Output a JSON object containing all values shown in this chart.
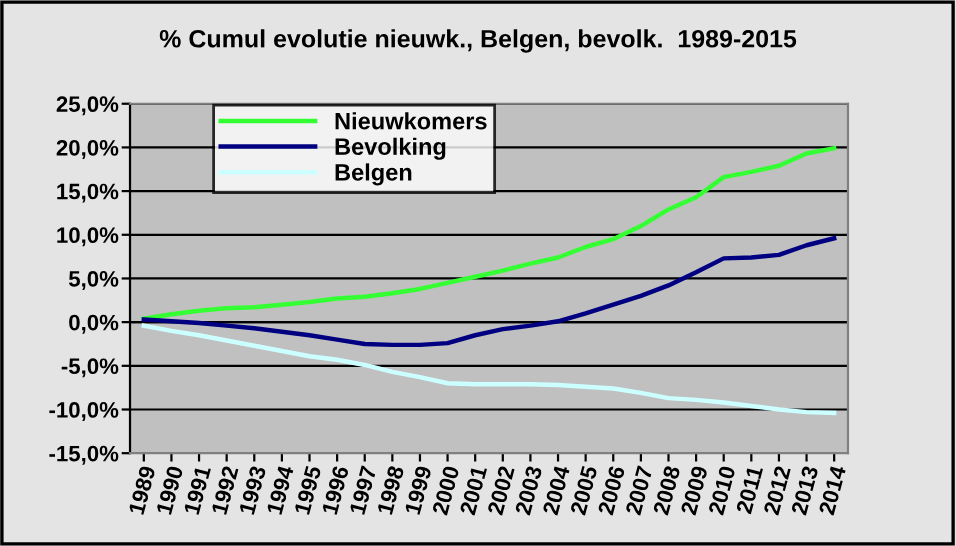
{
  "chart_data": {
    "type": "line",
    "title": "% Cumul evolutie nieuwk., Belgen, bevolk.  1989-2015",
    "categories": [
      "1989",
      "1990",
      "1991",
      "1992",
      "1993",
      "1994",
      "1995",
      "1996",
      "1997",
      "1998",
      "1999",
      "2000",
      "2001",
      "2002",
      "2003",
      "2004",
      "2005",
      "2006",
      "2007",
      "2008",
      "2009",
      "2010",
      "2011",
      "2012",
      "2013",
      "2014"
    ],
    "series": [
      {
        "name": "Nieuwkomers",
        "color": "#33ff33",
        "values": [
          0.4,
          0.9,
          1.3,
          1.6,
          1.7,
          2.0,
          2.3,
          2.7,
          2.9,
          3.3,
          3.8,
          4.5,
          5.2,
          5.9,
          6.7,
          7.4,
          8.6,
          9.5,
          11.0,
          12.9,
          14.3,
          16.6,
          17.2,
          17.9,
          19.3,
          19.9
        ]
      },
      {
        "name": "Bevolking",
        "color": "#000080",
        "values": [
          0.3,
          0.1,
          -0.1,
          -0.4,
          -0.7,
          -1.1,
          -1.5,
          -2.0,
          -2.5,
          -2.6,
          -2.6,
          -2.4,
          -1.5,
          -0.8,
          -0.4,
          0.1,
          1.0,
          2.0,
          3.0,
          4.2,
          5.7,
          7.3,
          7.4,
          7.7,
          8.8,
          9.6
        ]
      },
      {
        "name": "Belgen",
        "color": "#ccffff",
        "values": [
          -0.4,
          -1.0,
          -1.5,
          -2.1,
          -2.7,
          -3.3,
          -3.9,
          -4.3,
          -4.9,
          -5.7,
          -6.3,
          -7.0,
          -7.1,
          -7.1,
          -7.1,
          -7.2,
          -7.4,
          -7.6,
          -8.1,
          -8.7,
          -8.9,
          -9.2,
          -9.6,
          -10.0,
          -10.3,
          -10.4
        ]
      }
    ],
    "ylim": [
      -15,
      25
    ],
    "yticks": [
      {
        "value": -15,
        "label": "-15,0%"
      },
      {
        "value": -10,
        "label": "-10,0%"
      },
      {
        "value": -5,
        "label": "-5,0%"
      },
      {
        "value": 0,
        "label": "0,0%"
      },
      {
        "value": 5,
        "label": "5,0%"
      },
      {
        "value": 10,
        "label": "10,0%"
      },
      {
        "value": 15,
        "label": "15,0%"
      },
      {
        "value": 20,
        "label": "20,0%"
      },
      {
        "value": 25,
        "label": "25,0%"
      }
    ],
    "grid": "y",
    "legend": "top left",
    "marker": "none",
    "line_style": "solid"
  }
}
